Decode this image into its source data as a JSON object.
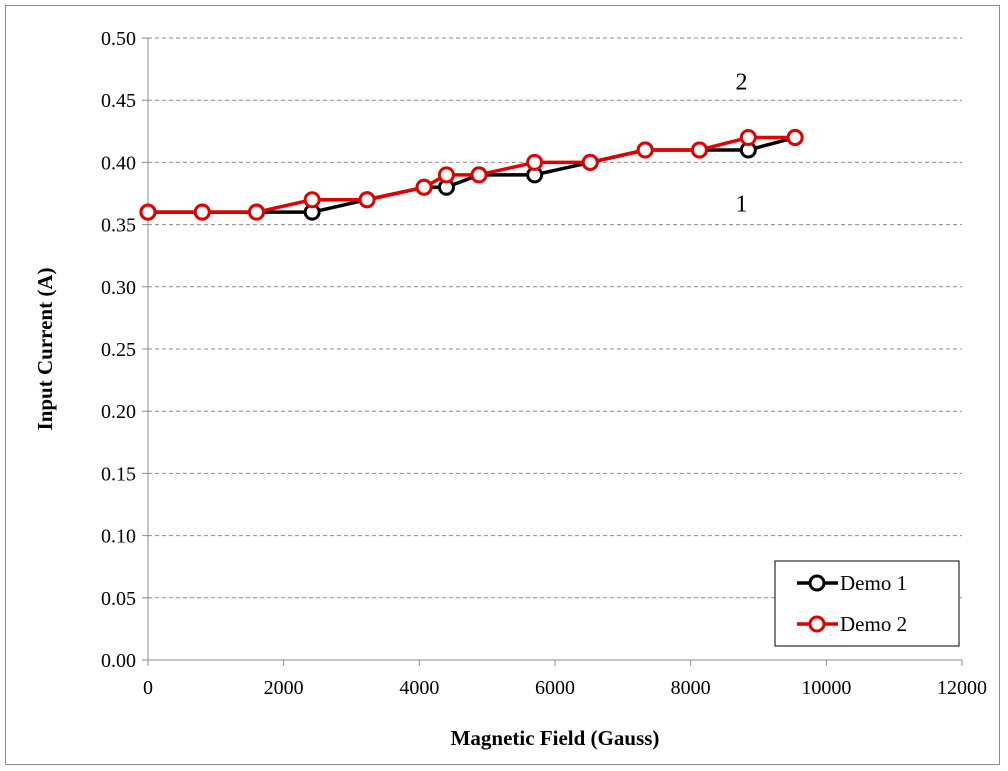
{
  "chart_data": {
    "type": "line",
    "title": "",
    "xlabel": "Magnetic Field (Gauss)",
    "ylabel": "Input Current (A)",
    "xlim": [
      0,
      12000
    ],
    "ylim": [
      0,
      0.5
    ],
    "x_ticks": [
      "0",
      "2000",
      "4000",
      "6000",
      "8000",
      "10000",
      "12000"
    ],
    "y_ticks": [
      "0.00",
      "0.05",
      "0.10",
      "0.15",
      "0.20",
      "0.25",
      "0.30",
      "0.35",
      "0.40",
      "0.45",
      "0.50"
    ],
    "grid": "horizontal dashed",
    "legend_position": "bottom-right",
    "series": [
      {
        "name": "Demo 1",
        "color": "#000000",
        "x": [
          0,
          800,
          1600,
          2420,
          3230,
          4070,
          4400,
          4880,
          5700,
          6520,
          7330,
          8130,
          8850,
          9540
        ],
        "y": [
          0.36,
          0.36,
          0.36,
          0.36,
          0.37,
          0.38,
          0.38,
          0.39,
          0.39,
          0.4,
          0.41,
          0.41,
          0.41,
          0.42
        ]
      },
      {
        "name": "Demo 2",
        "color": "#e00000",
        "x": [
          0,
          800,
          1600,
          2420,
          3230,
          4070,
          4400,
          4880,
          5700,
          6520,
          7330,
          8130,
          8850,
          9540
        ],
        "y": [
          0.36,
          0.36,
          0.36,
          0.37,
          0.37,
          0.38,
          0.39,
          0.39,
          0.4,
          0.4,
          0.41,
          0.41,
          0.42,
          0.42
        ]
      }
    ],
    "annotations": [
      {
        "text": "2",
        "x": 8750,
        "y": 0.465
      },
      {
        "text": "1",
        "x": 8750,
        "y": 0.367
      }
    ]
  }
}
